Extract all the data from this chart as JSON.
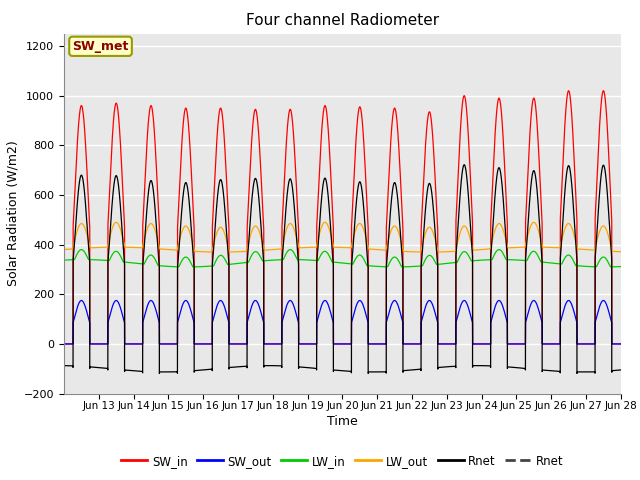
{
  "title": "Four channel Radiometer",
  "xlabel": "Time",
  "ylabel": "Solar Radiation (W/m2)",
  "ylim": [
    -200,
    1250
  ],
  "annotation_text": "SW_met",
  "annotation_color": "#8B0000",
  "annotation_bg": "#FFFFC8",
  "colors": {
    "SW_in": "#FF0000",
    "SW_out": "#0000FF",
    "LW_in": "#00CC00",
    "LW_out": "#FFA500",
    "Rnet": "#000000",
    "Rnet2": "#444444"
  },
  "bg_color": "#E8E8E8",
  "grid_color": "#FFFFFF",
  "sw_in_peaks": [
    960,
    970,
    960,
    950,
    950,
    945,
    945,
    960,
    955,
    950,
    935,
    1000,
    990,
    990,
    1020,
    1020
  ],
  "sw_out_peaks": [
    175,
    175,
    175,
    175,
    175,
    175,
    175,
    175,
    175,
    175,
    175,
    175,
    175,
    175,
    175,
    175
  ],
  "yticks": [
    -200,
    0,
    200,
    400,
    600,
    800,
    1000,
    1200
  ],
  "xtick_labels": [
    "Jun 13",
    "Jun 14",
    "Jun 15",
    "Jun 16",
    "Jun 17",
    "Jun 18",
    "Jun 19",
    "Jun 20",
    "Jun 21",
    "Jun 22",
    "Jun 23",
    "Jun 24",
    "Jun 25",
    "Jun 26",
    "Jun 27",
    "Jun 28"
  ]
}
